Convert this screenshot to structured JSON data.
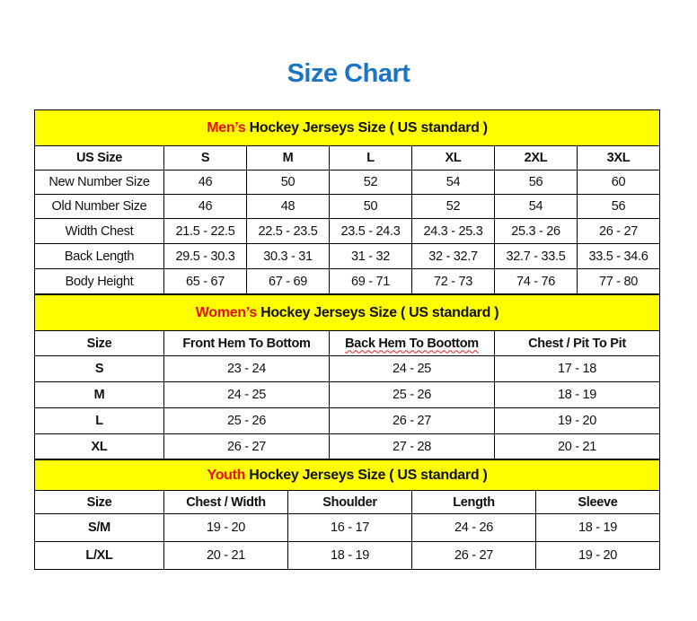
{
  "title": "Size Chart",
  "colors": {
    "title": "#1a75c4",
    "header_bg": "#ffff00",
    "accent_red": "#e31010"
  },
  "men": {
    "header_accent": "Men’s",
    "header_rest": " Hockey Jerseys Size ( US standard )",
    "columns": [
      "US Size",
      "S",
      "M",
      "L",
      "XL",
      "2XL",
      "3XL"
    ],
    "rows": [
      [
        "New Number Size",
        "46",
        "50",
        "52",
        "54",
        "56",
        "60"
      ],
      [
        "Old Number Size",
        "46",
        "48",
        "50",
        "52",
        "54",
        "56"
      ],
      [
        "Width Chest",
        "21.5 - 22.5",
        "22.5 - 23.5",
        "23.5 - 24.3",
        "24.3 - 25.3",
        "25.3 - 26",
        "26 - 27"
      ],
      [
        "Back Length",
        "29.5 - 30.3",
        "30.3 - 31",
        "31 - 32",
        "32 - 32.7",
        "32.7 - 33.5",
        "33.5 - 34.6"
      ],
      [
        "Body Height",
        "65 - 67",
        "67 - 69",
        "69 - 71",
        "72 - 73",
        "74 - 76",
        "77 - 80"
      ]
    ]
  },
  "women": {
    "header_accent": "Women’s",
    "header_rest": " Hockey Jerseys Size ( US standard )",
    "columns": [
      "Size",
      "Front Hem To Bottom",
      "Back Hem To Boottom",
      "Chest / Pit To Pit"
    ],
    "rows": [
      [
        "S",
        "23 - 24",
        "24 - 25",
        "17 - 18"
      ],
      [
        "M",
        "24 - 25",
        "25 - 26",
        "18 - 19"
      ],
      [
        "L",
        "25 - 26",
        "26 - 27",
        "19 - 20"
      ],
      [
        "XL",
        "26 - 27",
        "27 - 28",
        "20 - 21"
      ]
    ]
  },
  "youth": {
    "header_accent": "Youth",
    "header_rest": " Hockey Jerseys Size ( US standard )",
    "columns": [
      "Size",
      "Chest / Width",
      "Shoulder",
      "Length",
      "Sleeve"
    ],
    "rows": [
      [
        "S/M",
        "19 - 20",
        "16 - 17",
        "24 - 26",
        "18 - 19"
      ],
      [
        "L/XL",
        "20 - 21",
        "18 - 19",
        "26 - 27",
        "19 - 20"
      ]
    ]
  }
}
